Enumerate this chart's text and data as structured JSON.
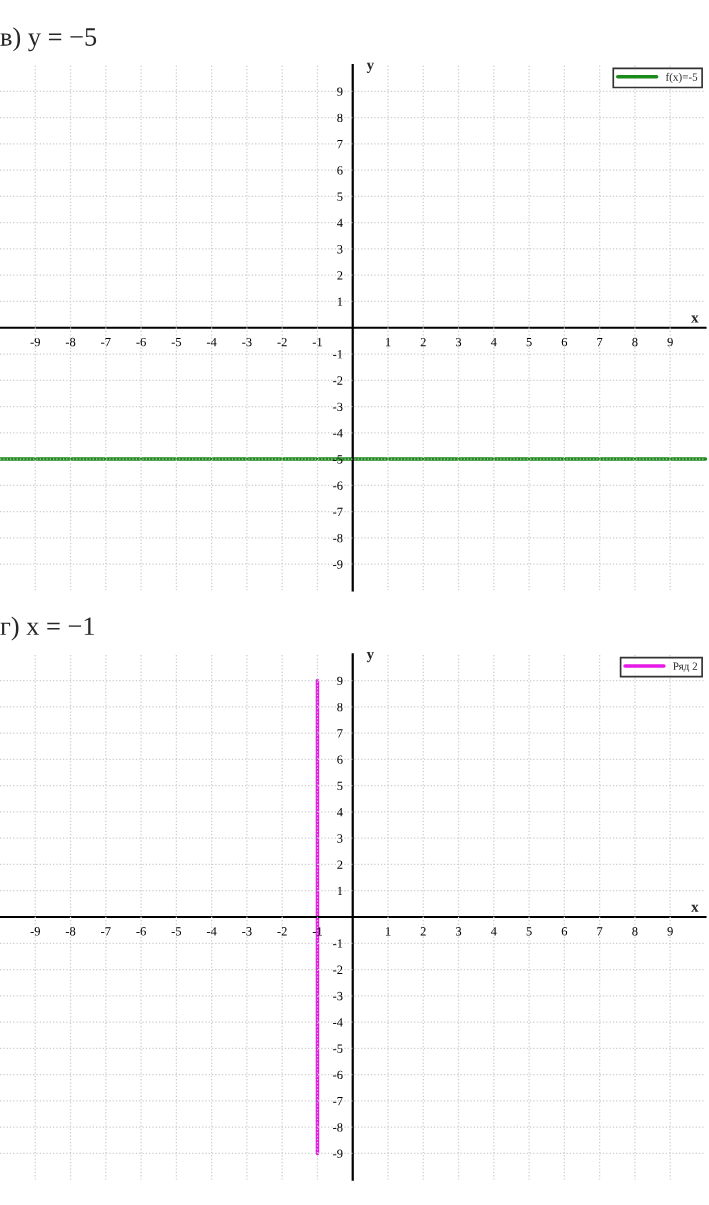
{
  "chart_data": [
    {
      "type": "line",
      "title": "в) y = −5",
      "xlabel": "x",
      "ylabel": "y",
      "xlim": [
        -10,
        10
      ],
      "ylim": [
        -10,
        10
      ],
      "xticks": [
        -9,
        -8,
        -7,
        -6,
        -5,
        -4,
        -3,
        -2,
        -1,
        1,
        2,
        3,
        4,
        5,
        6,
        7,
        8,
        9
      ],
      "yticks": [
        -9,
        -8,
        -7,
        -6,
        -5,
        -4,
        -3,
        -2,
        -1,
        1,
        2,
        3,
        4,
        5,
        6,
        7,
        8,
        9
      ],
      "grid": true,
      "legend": "top right",
      "line_style": "solid",
      "marker": "none",
      "series": [
        {
          "name": "f(x)=-5",
          "color": "#1a8a1a",
          "x": [
            -10,
            10
          ],
          "values": [
            -5,
            -5
          ]
        }
      ]
    },
    {
      "type": "line",
      "title": "г) x = −1",
      "xlabel": "x",
      "ylabel": "y",
      "xlim": [
        -10,
        10
      ],
      "ylim": [
        -10,
        10
      ],
      "xticks": [
        -9,
        -8,
        -7,
        -6,
        -5,
        -4,
        -3,
        -2,
        -1,
        1,
        2,
        3,
        4,
        5,
        6,
        7,
        8,
        9
      ],
      "yticks": [
        -9,
        -8,
        -7,
        -6,
        -5,
        -4,
        -3,
        -2,
        -1,
        1,
        2,
        3,
        4,
        5,
        6,
        7,
        8,
        9
      ],
      "grid": true,
      "legend": "top right",
      "line_style": "solid",
      "marker": "none",
      "series": [
        {
          "name": "Ряд 2",
          "color": "#e619e6",
          "x": [
            -1,
            -1
          ],
          "values": [
            -9,
            9
          ]
        }
      ]
    }
  ]
}
